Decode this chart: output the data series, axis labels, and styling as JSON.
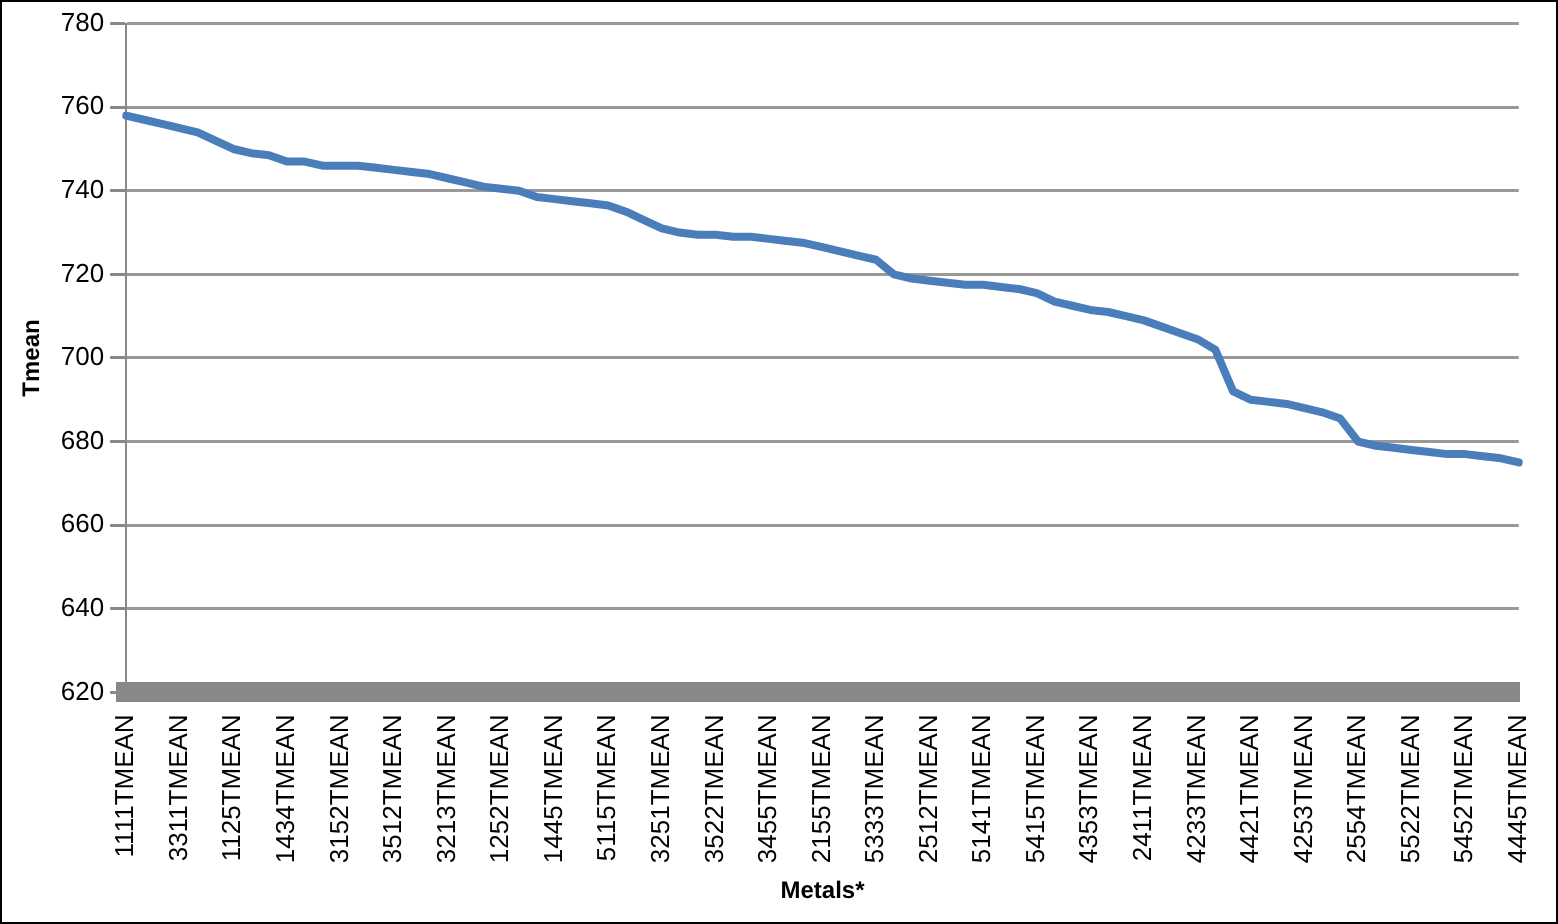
{
  "chart_data": {
    "type": "line",
    "xlabel": "Metals*",
    "ylabel": "Tmean",
    "categories": [
      "1111TMEAN",
      null,
      null,
      "3311TMEAN",
      null,
      null,
      "1125TMEAN",
      null,
      null,
      "1434TMEAN",
      null,
      null,
      "3152TMEAN",
      null,
      null,
      "3512TMEAN",
      null,
      null,
      "3213TMEAN",
      null,
      null,
      "1252TMEAN",
      null,
      null,
      "1445TMEAN",
      null,
      null,
      "5115TMEAN",
      null,
      null,
      "3251TMEAN",
      null,
      null,
      "3522TMEAN",
      null,
      null,
      "3455TMEAN",
      null,
      null,
      "2155TMEAN",
      null,
      null,
      "5333TMEAN",
      null,
      null,
      "2512TMEAN",
      null,
      null,
      "5141TMEAN",
      null,
      null,
      "5415TMEAN",
      null,
      null,
      "4353TMEAN",
      null,
      null,
      "2411TMEAN",
      null,
      null,
      "4233TMEAN",
      null,
      null,
      "4421TMEAN",
      null,
      null,
      "4253TMEAN",
      null,
      null,
      "2554TMEAN",
      null,
      null,
      "5522TMEAN",
      null,
      null,
      "5452TMEAN",
      null,
      null,
      "4445TMEAN"
    ],
    "series": [
      {
        "color": "#4a7ebb",
        "values": [
          758,
          757,
          756,
          755,
          754,
          752,
          750,
          749,
          748.5,
          747,
          747,
          746,
          746,
          746,
          745.5,
          745,
          744.5,
          744,
          743,
          742,
          741,
          740.5,
          740,
          738.5,
          738,
          737.5,
          737,
          736.5,
          735,
          733,
          731,
          730,
          729.5,
          729.5,
          729,
          729,
          728.5,
          728,
          727.5,
          726.5,
          725.5,
          724.5,
          723.5,
          720,
          719,
          718.5,
          718,
          717.5,
          717.5,
          717,
          716.5,
          715.5,
          713.5,
          712.5,
          711.5,
          711,
          710,
          709,
          707.5,
          706,
          704.5,
          702,
          692,
          690,
          689.5,
          689,
          688,
          687,
          685.5,
          680,
          679,
          678.5,
          678,
          677.5,
          677,
          677,
          676.5,
          676,
          675
        ]
      }
    ],
    "ylim": [
      620,
      780
    ],
    "yticks": [
      620,
      640,
      660,
      680,
      700,
      720,
      740,
      760,
      780
    ],
    "grid": "y",
    "legend": false,
    "marker": "none",
    "line_style": "solid"
  }
}
